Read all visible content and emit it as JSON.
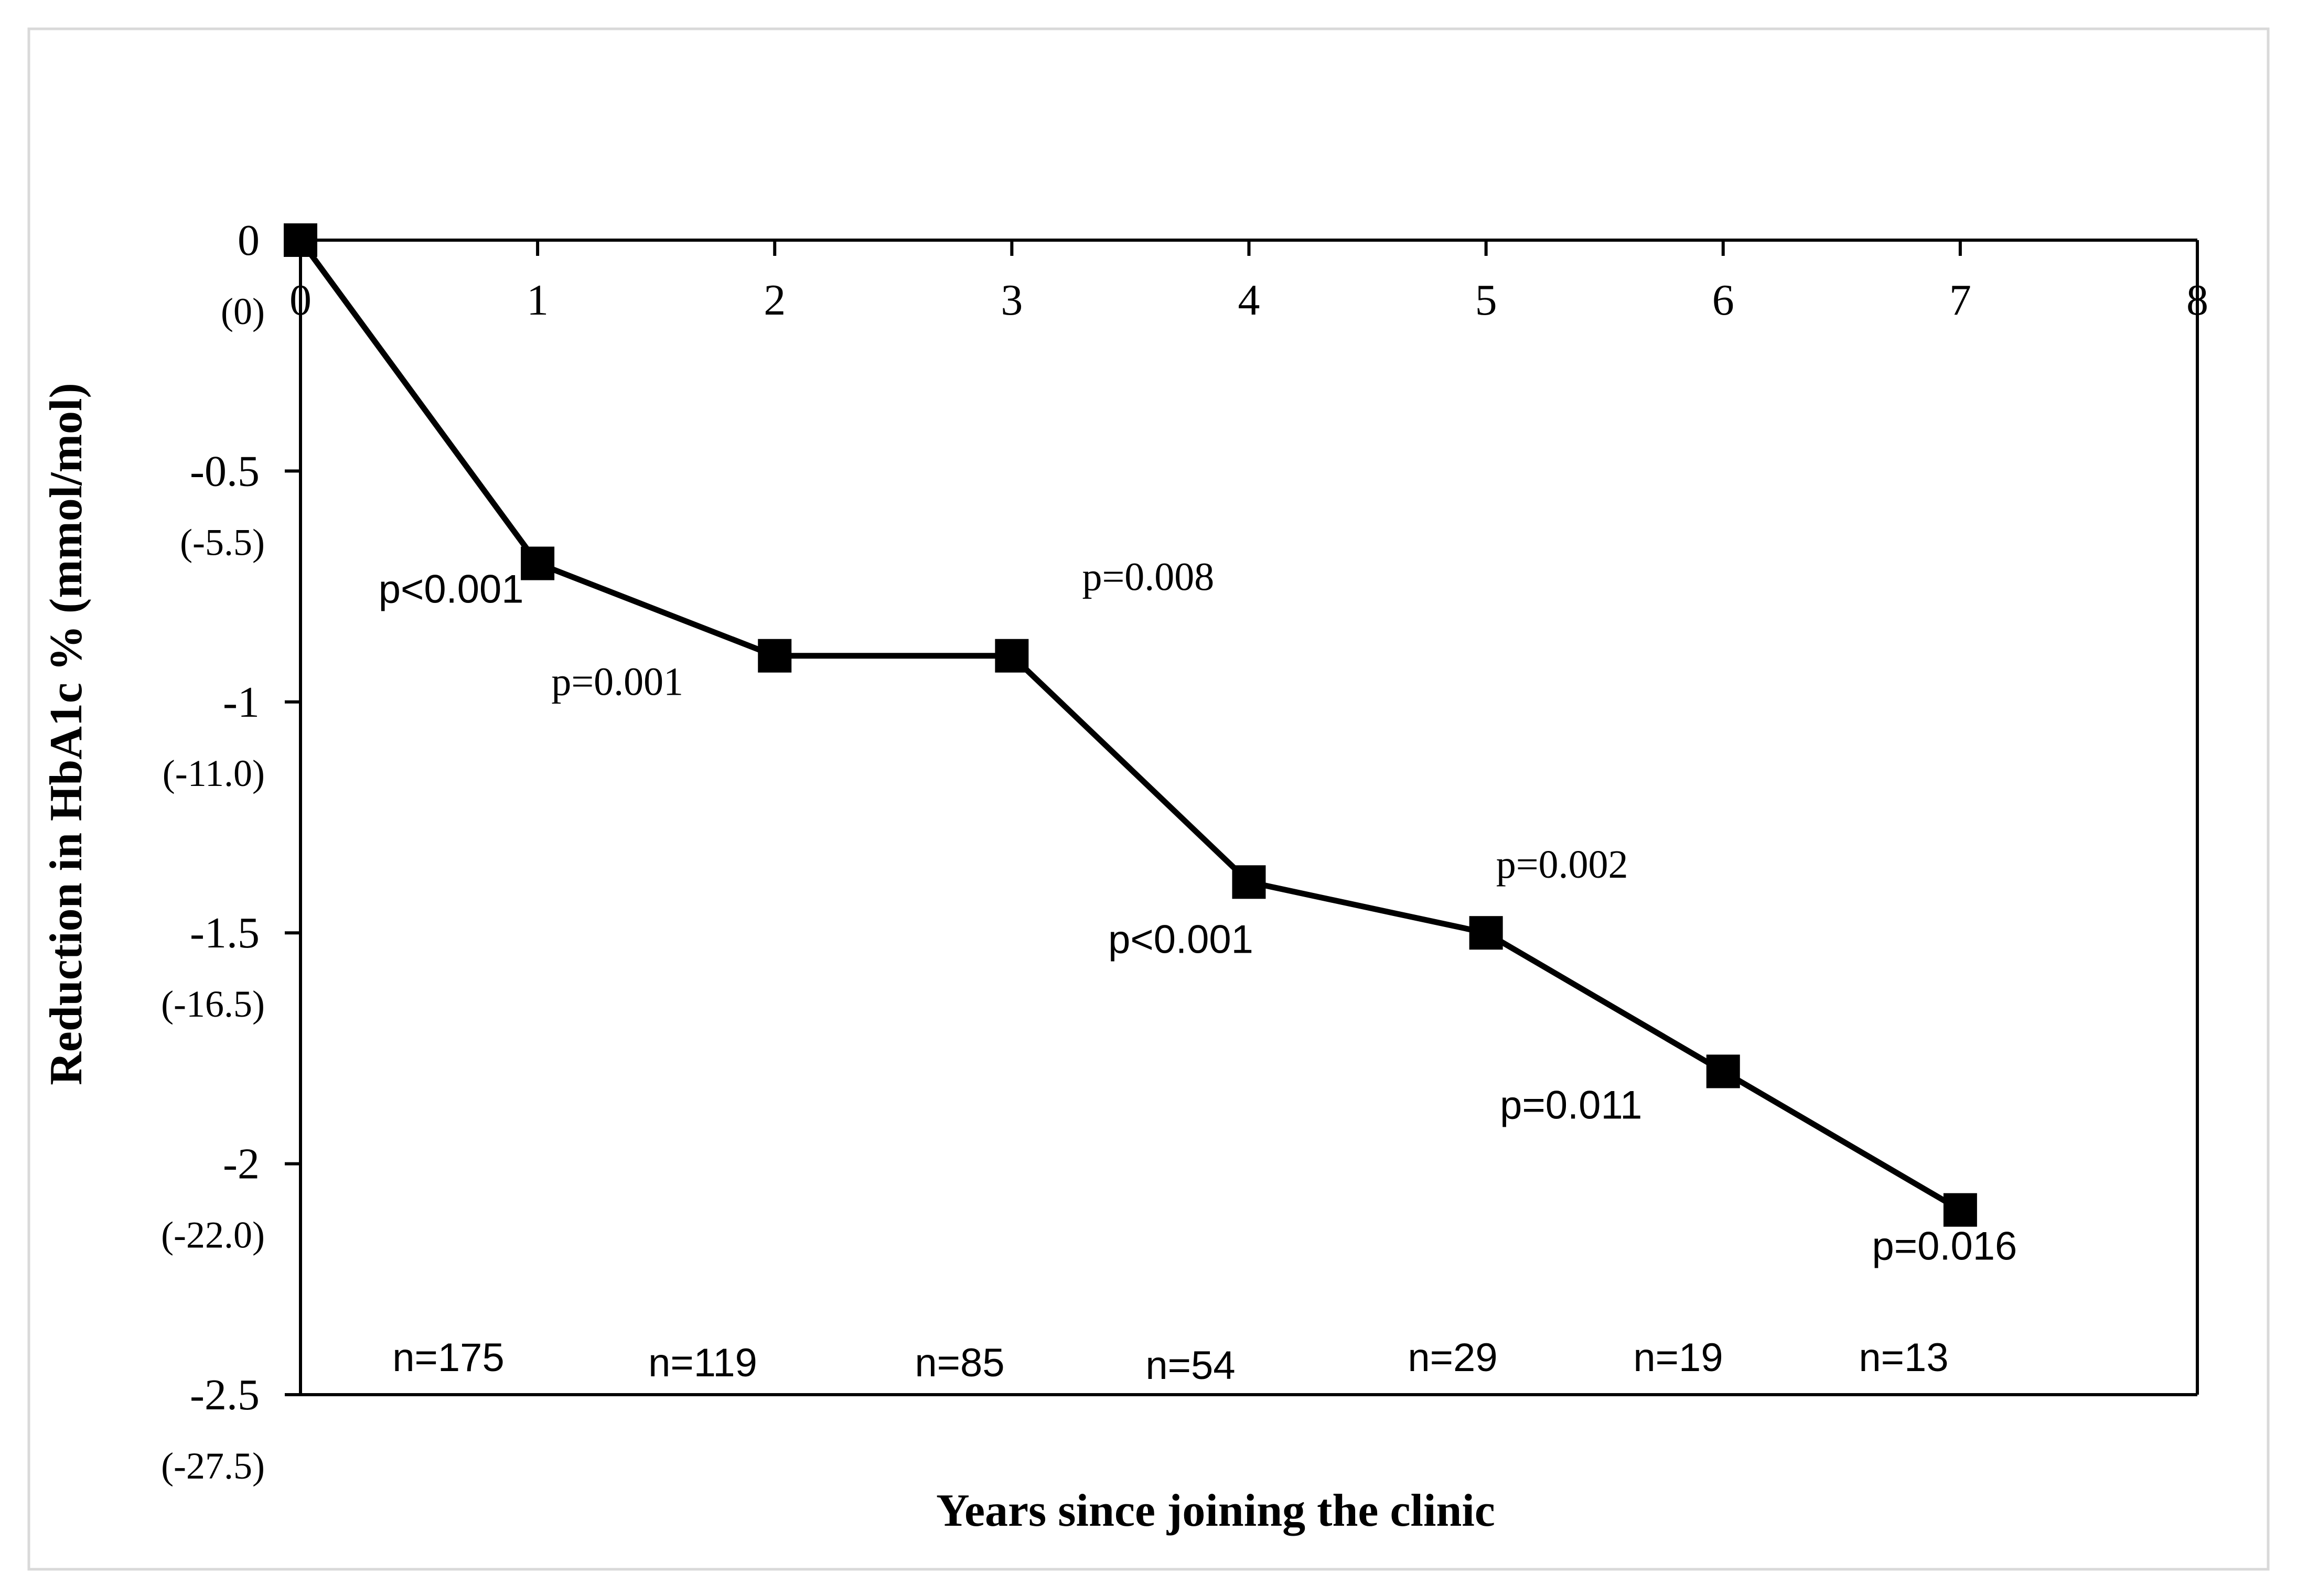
{
  "chart_data": {
    "type": "line",
    "title": "",
    "xlabel": "Years since joining the clinic",
    "ylabel": "Reduction in HbA1c % (mmol/mol)",
    "xlim": [
      0,
      8
    ],
    "ylim": [
      -2.5,
      0
    ],
    "x_ticks": [
      "0",
      "1",
      "2",
      "3",
      "4",
      "5",
      "6",
      "7",
      "8"
    ],
    "y_ticks": [
      {
        "value": 0,
        "label": "0",
        "sublabel": "(0)"
      },
      {
        "value": -0.5,
        "label": "-0.5",
        "sublabel": "(-5.5)"
      },
      {
        "value": -1,
        "label": "-1",
        "sublabel": "(-11.0)"
      },
      {
        "value": -1.5,
        "label": "-1.5",
        "sublabel": "(-16.5)"
      },
      {
        "value": -2,
        "label": "-2",
        "sublabel": "(-22.0)"
      },
      {
        "value": -2.5,
        "label": "-2.5",
        "sublabel": "(-27.5)"
      }
    ],
    "series": [
      {
        "x": [
          0,
          1,
          2,
          3,
          4,
          5,
          6,
          7
        ],
        "values": [
          0,
          -0.7,
          -0.9,
          -0.9,
          -1.39,
          -1.5,
          -1.8,
          -2.1
        ]
      }
    ],
    "p_values": [
      "p<0.001",
      "p=0.001",
      "p=0.008",
      "p<0.001",
      "p=0.002",
      "p=0.011",
      "p=0.016"
    ],
    "sample_sizes": [
      "n=175",
      "n=119",
      "n=85",
      "n=54",
      "n=29",
      "n=19",
      "n=13"
    ],
    "grid": false,
    "legend": "none"
  }
}
